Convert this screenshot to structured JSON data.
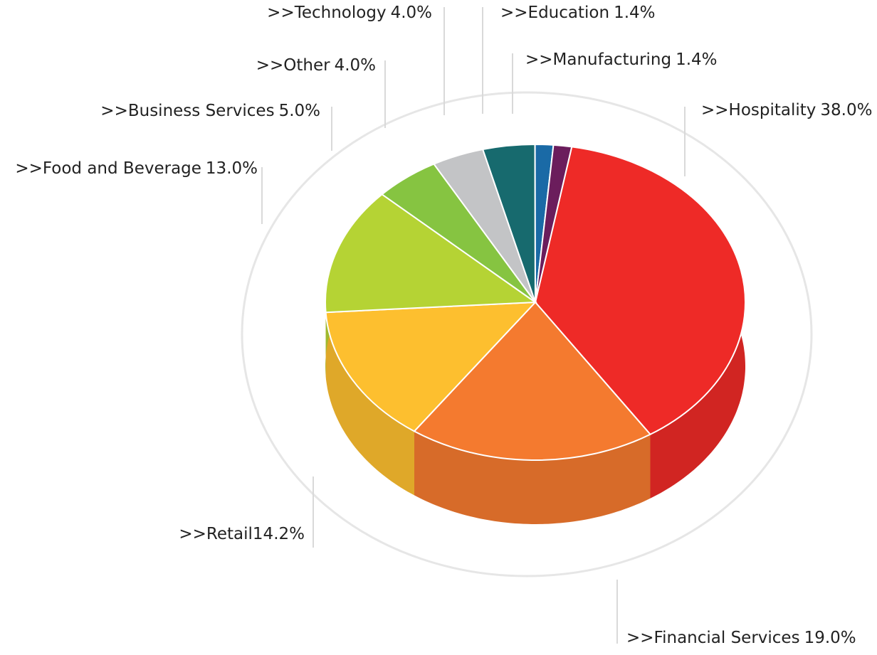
{
  "chart_data": {
    "type": "pie",
    "categories": [
      ">>Hospitality",
      ">>Financial Services",
      ">>Retail",
      ">>Food and Beverage",
      ">>Business Services",
      ">>Other",
      ">>Technology",
      ">>Education",
      ">>Manufacturing"
    ],
    "values": [
      38.0,
      19.0,
      14.2,
      13.0,
      5.0,
      4.0,
      4.0,
      1.4,
      1.4
    ],
    "value_labels": [
      "38.0%",
      "19.0%",
      "14.2%",
      "13.0%",
      "5.0%",
      "4.0%",
      "4.0%",
      "1.4%",
      "1.4%"
    ],
    "colors": [
      "#ee2a27",
      "#f47a2f",
      "#fdbf2f",
      "#b5d334",
      "#86c441",
      "#c3c4c6",
      "#176a6e",
      "#1a6aa6",
      "#6b1d5c"
    ]
  }
}
